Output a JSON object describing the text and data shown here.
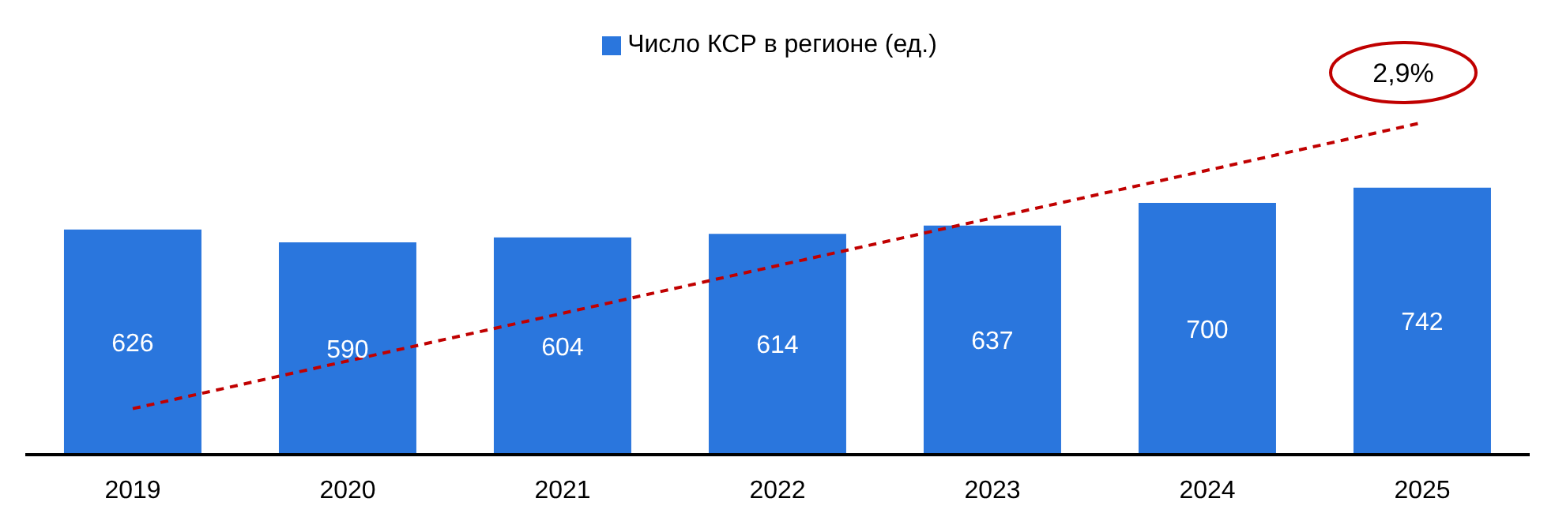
{
  "chart_data": {
    "type": "bar",
    "categories": [
      "2019",
      "2020",
      "2021",
      "2022",
      "2023",
      "2024",
      "2025"
    ],
    "series": [
      {
        "name": "Число КСР в регионе (ед.)",
        "color": "#2a76dd",
        "values": [
          626,
          590,
          604,
          614,
          637,
          700,
          742
        ]
      },
      {
        "type": "line",
        "color": "#c00000",
        "values": [
          128,
          null,
          null,
          null,
          null,
          null,
          923
        ],
        "value_labels": [
          null,
          null,
          null,
          null,
          null,
          null,
          null
        ],
        "line_style": "dashed",
        "marker": "none"
      }
    ],
    "data_labels": true,
    "legend": "top",
    "grid": false,
    "annotations": [
      "2,9%"
    ]
  }
}
